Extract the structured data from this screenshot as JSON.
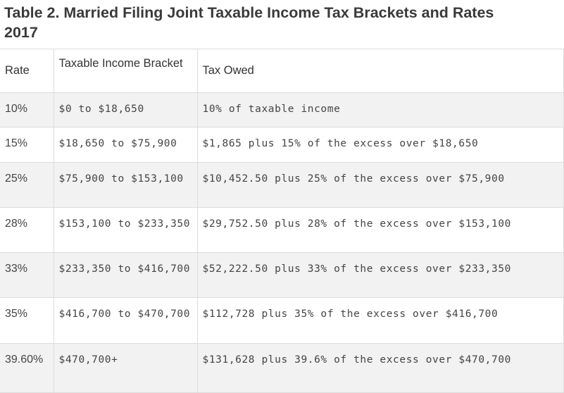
{
  "title": "Table 2. Married Filing Joint Taxable Income Tax Brackets and Rates 2017",
  "table": {
    "headers": [
      "Rate",
      "Taxable Income Bracket",
      "Tax Owed"
    ],
    "rows": [
      [
        "10%",
        "$0 to $18,650",
        "10% of taxable income"
      ],
      [
        "15%",
        "$18,650 to $75,900",
        "$1,865 plus 15% of the excess over $18,650"
      ],
      [
        "25%",
        "$75,900 to $153,100",
        "$10,452.50 plus 25% of the excess over $75,900"
      ],
      [
        "28%",
        "$153,100 to $233,350",
        "$29,752.50 plus 28% of the excess over $153,100"
      ],
      [
        "33%",
        "$233,350 to $416,700",
        "$52,222.50 plus 33% of the excess over $233,350"
      ],
      [
        "35%",
        "$416,700 to $470,700",
        "$112,728 plus 35% of the excess over $416,700"
      ],
      [
        "39.60%",
        "$470,700+",
        "$131,628 plus 39.6% of the excess over $470,700"
      ]
    ]
  }
}
